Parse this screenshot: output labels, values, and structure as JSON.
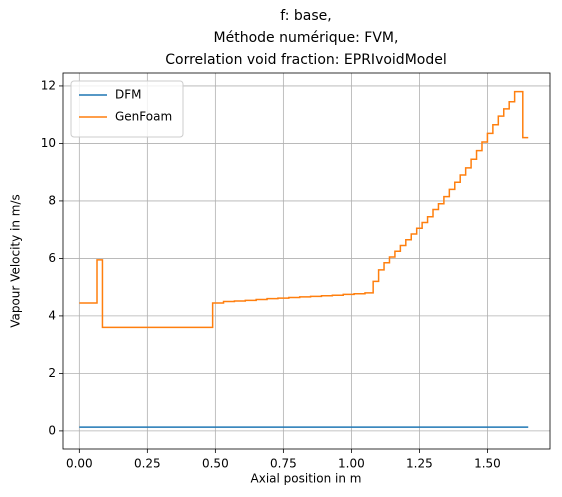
{
  "chart_data": {
    "type": "line",
    "step": "post",
    "title": [
      "f: base,",
      "Méthode numérique: FVM,",
      "Correlation void fraction: EPRIvoidModel"
    ],
    "xlabel": "Axial position in m",
    "ylabel": "Vapour Velocity in m/s",
    "xlim": [
      -0.06,
      1.73
    ],
    "ylim": [
      -0.63,
      12.45
    ],
    "xticks": [
      {
        "value": 0,
        "label": "0.00"
      },
      {
        "value": 0.25,
        "label": "0.25"
      },
      {
        "value": 0.5,
        "label": "0.50"
      },
      {
        "value": 0.75,
        "label": "0.75"
      },
      {
        "value": 1.0,
        "label": "1.00"
      },
      {
        "value": 1.25,
        "label": "1.25"
      },
      {
        "value": 1.5,
        "label": "1.50"
      }
    ],
    "yticks": [
      0,
      2,
      4,
      6,
      8,
      10,
      12
    ],
    "grid": true,
    "legend": "upper left",
    "series": [
      {
        "name": "DFM",
        "color": "#1f77b4",
        "x": [
          0,
          1.65
        ],
        "values": [
          0.13,
          0.13
        ]
      },
      {
        "name": "GenFoam",
        "color": "#ff7f0e",
        "x": [
          0,
          0.065,
          0.085,
          0.49,
          0.53,
          0.57,
          0.61,
          0.65,
          0.69,
          0.73,
          0.77,
          0.81,
          0.85,
          0.89,
          0.93,
          0.97,
          1.01,
          1.05,
          1.08,
          1.1,
          1.12,
          1.14,
          1.16,
          1.18,
          1.2,
          1.22,
          1.24,
          1.26,
          1.28,
          1.3,
          1.32,
          1.34,
          1.36,
          1.38,
          1.4,
          1.42,
          1.44,
          1.46,
          1.48,
          1.5,
          1.52,
          1.54,
          1.56,
          1.58,
          1.6,
          1.63,
          1.65
        ],
        "values": [
          4.45,
          5.95,
          3.6,
          4.45,
          4.5,
          4.52,
          4.54,
          4.57,
          4.6,
          4.62,
          4.64,
          4.66,
          4.68,
          4.7,
          4.72,
          4.75,
          4.77,
          4.8,
          5.2,
          5.6,
          5.85,
          6.05,
          6.25,
          6.45,
          6.65,
          6.85,
          7.05,
          7.25,
          7.45,
          7.7,
          7.9,
          8.15,
          8.4,
          8.65,
          8.9,
          9.15,
          9.45,
          9.75,
          10.05,
          10.35,
          10.65,
          10.95,
          11.2,
          11.45,
          11.8,
          10.2,
          10.2
        ]
      }
    ]
  }
}
